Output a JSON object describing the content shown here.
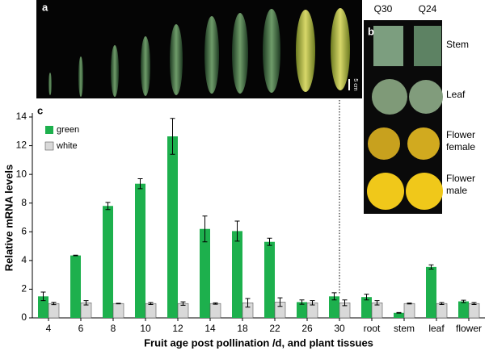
{
  "panels": {
    "a": {
      "label": "a",
      "scale_bar": "5 cm"
    },
    "b": {
      "label": "b",
      "columns": [
        "Q30",
        "Q24"
      ],
      "rows": [
        [
          "Stem"
        ],
        [
          "Leaf"
        ],
        [
          "Flower",
          "female"
        ],
        [
          "Flower",
          "male"
        ]
      ]
    }
  },
  "chart_data": {
    "type": "bar",
    "panel_label": "c",
    "x_label": "Fruit age post pollination /d, and plant tissues",
    "y_label": "Relative mRNA levels",
    "categories": [
      "4",
      "6",
      "8",
      "10",
      "12",
      "14",
      "18",
      "22",
      "26",
      "30",
      "root",
      "stem",
      "leaf",
      "flower"
    ],
    "series": [
      {
        "name": "green",
        "color": "#1db04d",
        "values": [
          1.5,
          4.35,
          7.8,
          9.35,
          12.65,
          6.2,
          6.05,
          5.3,
          1.1,
          1.5,
          1.45,
          0.35,
          3.55,
          1.15
        ],
        "errors": [
          0.3,
          0.02,
          0.25,
          0.35,
          1.25,
          0.9,
          0.7,
          0.25,
          0.15,
          0.25,
          0.2,
          0.02,
          0.15,
          0.08
        ]
      },
      {
        "name": "white",
        "color": "#d9d9d9",
        "values": [
          1.0,
          1.05,
          1.0,
          1.0,
          1.0,
          1.0,
          1.05,
          1.1,
          1.05,
          1.05,
          1.05,
          1.0,
          1.0,
          1.0
        ],
        "errors": [
          0.08,
          0.15,
          0.02,
          0.07,
          0.12,
          0.05,
          0.3,
          0.3,
          0.15,
          0.2,
          0.15,
          0.03,
          0.07,
          0.07
        ]
      }
    ],
    "ylim": [
      0,
      14
    ],
    "yticks": [
      0,
      2,
      4,
      6,
      8,
      10,
      12,
      14
    ],
    "legend": "upper left",
    "grid": false
  }
}
